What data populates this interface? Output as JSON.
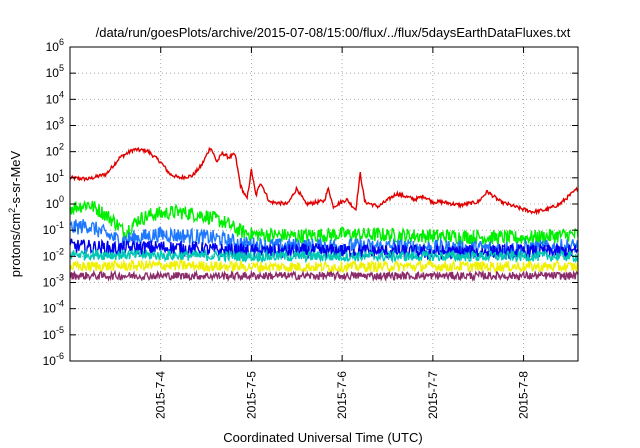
{
  "chart_data": {
    "type": "line",
    "title": "/data/run/goesPlots/archive/2015-07-08/15:00/flux/../flux/5daysEarthDataFluxes.txt",
    "xlabel": "Coordinated Universal Time (UTC)",
    "ylabel": "protons/cm2-s-sr-MeV",
    "ylabel_parts": {
      "pre": "protons/cm",
      "sup": "2",
      "post": "-s-sr-MeV"
    },
    "yscale": "log",
    "ylim": [
      1e-06,
      1000000.0
    ],
    "xlim": [
      3.0,
      8.6
    ],
    "grid": true,
    "y_ticks": [
      {
        "exp": -6,
        "base": "10",
        "power": "-6"
      },
      {
        "exp": -5,
        "base": "10",
        "power": "-5"
      },
      {
        "exp": -4,
        "base": "10",
        "power": "-4"
      },
      {
        "exp": -3,
        "base": "10",
        "power": "-3"
      },
      {
        "exp": -2,
        "base": "10",
        "power": "-2"
      },
      {
        "exp": -1,
        "base": "10",
        "power": "-1"
      },
      {
        "exp": 0,
        "base": "10",
        "power": "0"
      },
      {
        "exp": 1,
        "base": "10",
        "power": "1"
      },
      {
        "exp": 2,
        "base": "10",
        "power": "2"
      },
      {
        "exp": 3,
        "base": "10",
        "power": "3"
      },
      {
        "exp": 4,
        "base": "10",
        "power": "4"
      },
      {
        "exp": 5,
        "base": "10",
        "power": "5"
      },
      {
        "exp": 6,
        "base": "10",
        "power": "6"
      }
    ],
    "x_ticks": [
      {
        "x": 4,
        "label": "2015-7-4"
      },
      {
        "x": 5,
        "label": "2015-7-5"
      },
      {
        "x": 6,
        "label": "2015-7-6"
      },
      {
        "x": 7,
        "label": "2015-7-7"
      },
      {
        "x": 8,
        "label": "2015-7-8"
      }
    ],
    "series": [
      {
        "color": "#e00000",
        "noise": 0.07,
        "points": [
          [
            3.0,
            10
          ],
          [
            3.2,
            9
          ],
          [
            3.4,
            14
          ],
          [
            3.55,
            60
          ],
          [
            3.7,
            120
          ],
          [
            3.85,
            110
          ],
          [
            4.0,
            40
          ],
          [
            4.1,
            14
          ],
          [
            4.2,
            10
          ],
          [
            4.35,
            12
          ],
          [
            4.45,
            30
          ],
          [
            4.55,
            150
          ],
          [
            4.62,
            40
          ],
          [
            4.68,
            90
          ],
          [
            4.75,
            60
          ],
          [
            4.82,
            80
          ],
          [
            4.88,
            5
          ],
          [
            4.95,
            1.5
          ],
          [
            5.0,
            20
          ],
          [
            5.05,
            2
          ],
          [
            5.1,
            7
          ],
          [
            5.2,
            1.2
          ],
          [
            5.4,
            1
          ],
          [
            5.5,
            4
          ],
          [
            5.6,
            1
          ],
          [
            5.8,
            1.3
          ],
          [
            5.85,
            4
          ],
          [
            5.9,
            0.8
          ],
          [
            6.05,
            1.5
          ],
          [
            6.15,
            0.6
          ],
          [
            6.2,
            15
          ],
          [
            6.25,
            1.2
          ],
          [
            6.4,
            0.8
          ],
          [
            6.6,
            2.5
          ],
          [
            6.8,
            1.5
          ],
          [
            6.9,
            2
          ],
          [
            7.0,
            1.2
          ],
          [
            7.1,
            1.2
          ],
          [
            7.3,
            0.9
          ],
          [
            7.5,
            1.2
          ],
          [
            7.6,
            3
          ],
          [
            7.75,
            1.2
          ],
          [
            7.95,
            0.7
          ],
          [
            8.1,
            0.5
          ],
          [
            8.25,
            0.6
          ],
          [
            8.4,
            1
          ],
          [
            8.5,
            2
          ],
          [
            8.6,
            4
          ]
        ]
      },
      {
        "color": "#00ee00",
        "noise": 0.28,
        "points": [
          [
            3.0,
            0.7
          ],
          [
            3.2,
            1.0
          ],
          [
            3.35,
            0.5
          ],
          [
            3.5,
            0.2
          ],
          [
            3.6,
            0.08
          ],
          [
            3.75,
            0.25
          ],
          [
            3.9,
            0.4
          ],
          [
            4.2,
            0.5
          ],
          [
            4.5,
            0.35
          ],
          [
            4.7,
            0.2
          ],
          [
            4.85,
            0.1
          ],
          [
            5.0,
            0.07
          ],
          [
            5.5,
            0.06
          ],
          [
            6.0,
            0.07
          ],
          [
            7.0,
            0.06
          ],
          [
            8.0,
            0.05
          ],
          [
            8.6,
            0.07
          ]
        ]
      },
      {
        "color": "#1e78ff",
        "noise": 0.3,
        "points": [
          [
            3.0,
            0.12
          ],
          [
            3.2,
            0.15
          ],
          [
            3.4,
            0.07
          ],
          [
            3.55,
            0.04
          ],
          [
            3.7,
            0.05
          ],
          [
            4.0,
            0.07
          ],
          [
            4.3,
            0.06
          ],
          [
            4.6,
            0.05
          ],
          [
            4.9,
            0.03
          ],
          [
            5.2,
            0.025
          ],
          [
            6.0,
            0.025
          ],
          [
            7.0,
            0.022
          ],
          [
            8.0,
            0.02
          ],
          [
            8.6,
            0.025
          ]
        ]
      },
      {
        "color": "#0000ee",
        "noise": 0.28,
        "points": [
          [
            3.0,
            0.025
          ],
          [
            3.5,
            0.02
          ],
          [
            4.0,
            0.022
          ],
          [
            4.5,
            0.018
          ],
          [
            5.0,
            0.015
          ],
          [
            6.0,
            0.016
          ],
          [
            7.0,
            0.014
          ],
          [
            8.0,
            0.015
          ],
          [
            8.6,
            0.015
          ]
        ]
      },
      {
        "color": "#00c8b4",
        "noise": 0.2,
        "points": [
          [
            3.0,
            0.012
          ],
          [
            4.0,
            0.011
          ],
          [
            5.0,
            0.01
          ],
          [
            6.0,
            0.01
          ],
          [
            7.0,
            0.01
          ],
          [
            8.0,
            0.01
          ],
          [
            8.6,
            0.01
          ]
        ]
      },
      {
        "color": "#f0f000",
        "noise": 0.2,
        "points": [
          [
            3.0,
            0.004
          ],
          [
            4.0,
            0.0045
          ],
          [
            5.0,
            0.004
          ],
          [
            6.0,
            0.004
          ],
          [
            7.0,
            0.0042
          ],
          [
            8.0,
            0.004
          ],
          [
            8.6,
            0.004
          ]
        ]
      },
      {
        "color": "#8b2c6a",
        "noise": 0.15,
        "points": [
          [
            3.0,
            0.0018
          ],
          [
            4.0,
            0.0018
          ],
          [
            5.0,
            0.0018
          ],
          [
            6.0,
            0.0018
          ],
          [
            7.0,
            0.0018
          ],
          [
            8.0,
            0.0018
          ],
          [
            8.6,
            0.0018
          ]
        ]
      }
    ]
  }
}
